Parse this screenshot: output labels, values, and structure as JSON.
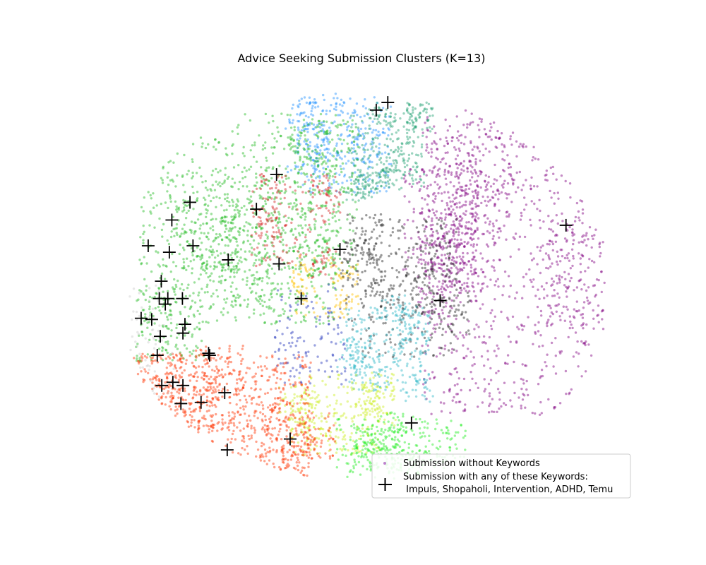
{
  "chart_data": {
    "type": "scatter",
    "title": "Advice Seeking Submission Clusters (K=13)",
    "xlabel": "",
    "ylabel": "",
    "axes_visible": false,
    "grid": false,
    "legend": {
      "placement": "lower-right",
      "entries": [
        {
          "label": "Submission without Keywords",
          "marker": "small-dot"
        },
        {
          "label": "Submission with any of these Keywords:",
          "label_line2": " Impuls, Shopaholi, Intervention, ADHD, Temu",
          "marker": "plus"
        }
      ]
    },
    "cluster_count": 13,
    "clusters": [
      {
        "color": "#800080",
        "x_range": [
          0.62,
          0.96
        ],
        "y_range": [
          0.18,
          0.92
        ],
        "points": 1400
      },
      {
        "color": "#1e90ff",
        "x_range": [
          0.37,
          0.56
        ],
        "y_range": [
          0.73,
          0.97
        ],
        "points": 380
      },
      {
        "color": "#20a070",
        "x_range": [
          0.48,
          0.63
        ],
        "y_range": [
          0.74,
          0.93
        ],
        "points": 380
      },
      {
        "color": "#22bb22",
        "x_range": [
          0.06,
          0.45
        ],
        "y_range": [
          0.4,
          0.93
        ],
        "points": 1500
      },
      {
        "color": "#d21f1f",
        "x_range": [
          0.28,
          0.44
        ],
        "y_range": [
          0.55,
          0.78
        ],
        "points": 220
      },
      {
        "color": "#ffc000",
        "x_range": [
          0.37,
          0.48
        ],
        "y_range": [
          0.42,
          0.58
        ],
        "points": 120
      },
      {
        "color": "#2233bb",
        "x_range": [
          0.33,
          0.47
        ],
        "y_range": [
          0.25,
          0.5
        ],
        "points": 120
      },
      {
        "color": "#222222",
        "x_range": [
          0.47,
          0.69
        ],
        "y_range": [
          0.32,
          0.67
        ],
        "points": 500
      },
      {
        "color": "#30b8c8",
        "x_range": [
          0.47,
          0.64
        ],
        "y_range": [
          0.24,
          0.45
        ],
        "points": 380
      },
      {
        "color": "#ccee22",
        "x_range": [
          0.36,
          0.54
        ],
        "y_range": [
          0.08,
          0.28
        ],
        "points": 380
      },
      {
        "color": "#22ee22",
        "x_range": [
          0.45,
          0.71
        ],
        "y_range": [
          0.0,
          0.17
        ],
        "points": 380
      },
      {
        "color": "#ff3300",
        "x_range": [
          0.09,
          0.4
        ],
        "y_range": [
          0.0,
          0.33
        ],
        "points": 900
      },
      {
        "color": "#cccccc",
        "x_range": [
          0.04,
          0.13
        ],
        "y_range": [
          0.14,
          0.5
        ],
        "points": 60
      }
    ],
    "keyword_points": [
      {
        "x": 0.553,
        "y": 0.956
      },
      {
        "x": 0.53,
        "y": 0.937
      },
      {
        "x": 0.332,
        "y": 0.777
      },
      {
        "x": 0.292,
        "y": 0.691
      },
      {
        "x": 0.458,
        "y": 0.591
      },
      {
        "x": 0.337,
        "y": 0.555
      },
      {
        "x": 0.381,
        "y": 0.469
      },
      {
        "x": 0.16,
        "y": 0.708
      },
      {
        "x": 0.124,
        "y": 0.664
      },
      {
        "x": 0.077,
        "y": 0.6
      },
      {
        "x": 0.119,
        "y": 0.584
      },
      {
        "x": 0.166,
        "y": 0.6
      },
      {
        "x": 0.236,
        "y": 0.565
      },
      {
        "x": 0.103,
        "y": 0.512
      },
      {
        "x": 0.099,
        "y": 0.469
      },
      {
        "x": 0.116,
        "y": 0.469
      },
      {
        "x": 0.145,
        "y": 0.469
      },
      {
        "x": 0.111,
        "y": 0.455
      },
      {
        "x": 0.063,
        "y": 0.42
      },
      {
        "x": 0.084,
        "y": 0.417
      },
      {
        "x": 0.15,
        "y": 0.405
      },
      {
        "x": 0.146,
        "y": 0.383
      },
      {
        "x": 0.101,
        "y": 0.375
      },
      {
        "x": 0.095,
        "y": 0.328
      },
      {
        "x": 0.197,
        "y": 0.333
      },
      {
        "x": 0.199,
        "y": 0.328
      },
      {
        "x": 0.126,
        "y": 0.261
      },
      {
        "x": 0.104,
        "y": 0.253
      },
      {
        "x": 0.146,
        "y": 0.253
      },
      {
        "x": 0.142,
        "y": 0.208
      },
      {
        "x": 0.182,
        "y": 0.211
      },
      {
        "x": 0.229,
        "y": 0.235
      },
      {
        "x": 0.234,
        "y": 0.093
      },
      {
        "x": 0.359,
        "y": 0.12
      },
      {
        "x": 0.6,
        "y": 0.16
      },
      {
        "x": 0.616,
        "y": 0.064
      },
      {
        "x": 0.907,
        "y": 0.651
      },
      {
        "x": 0.657,
        "y": 0.464
      }
    ]
  }
}
